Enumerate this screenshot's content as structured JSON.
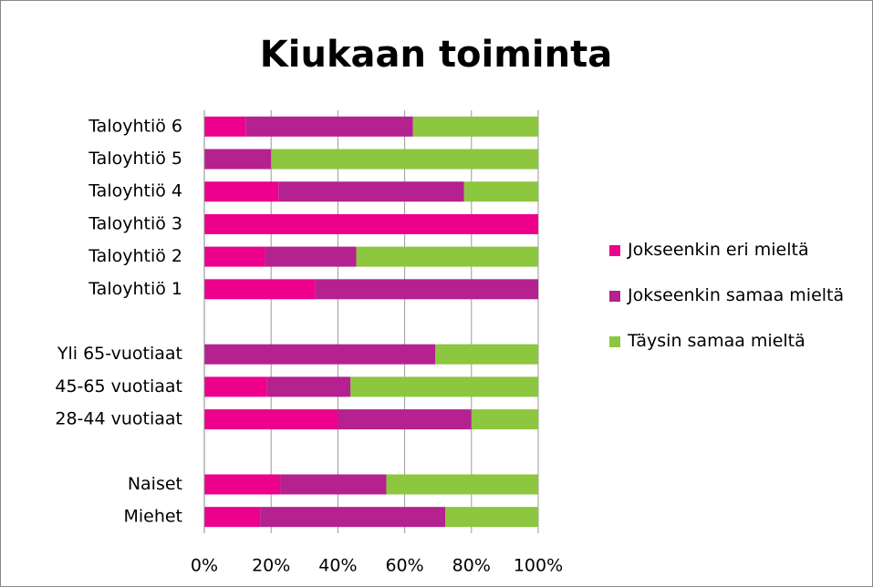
{
  "chart_data": {
    "type": "stacked_bar_horizontal",
    "title": "Kiukaan toiminta",
    "categories": [
      "Taloyhtiö 6",
      "Taloyhtiö 5",
      "Taloyhtiö 4",
      "Taloyhtiö 3",
      "Taloyhtiö 2",
      "Taloyhtiö 1",
      null,
      "Yli 65-vuotiaat",
      "45-65 vuotiaat",
      "28-44 vuotiaat",
      null,
      "Naiset",
      "Miehet"
    ],
    "series": [
      {
        "name": "Jokseenkin eri mieltä",
        "color": "#ec008c",
        "values": [
          12.5,
          0,
          22.2,
          100,
          18.2,
          33.3,
          null,
          0,
          18.8,
          40,
          null,
          22.7,
          16.7
        ]
      },
      {
        "name": "Jokseenkin samaa mieltä",
        "color": "#b5218f",
        "values": [
          50,
          20,
          55.6,
          0,
          27.3,
          66.7,
          null,
          69.2,
          25,
          40,
          null,
          31.8,
          55.5
        ]
      },
      {
        "name": "Täysin samaa mieltä",
        "color": "#8dc63f",
        "values": [
          37.5,
          80,
          22.2,
          0,
          54.5,
          0,
          null,
          30.8,
          56.2,
          20,
          null,
          45.5,
          27.8
        ]
      }
    ],
    "xlim": [
      0,
      100
    ],
    "xticks": [
      {
        "value": 0,
        "label": "0%"
      },
      {
        "value": 20,
        "label": "20%"
      },
      {
        "value": 40,
        "label": "40%"
      },
      {
        "value": 60,
        "label": "60%"
      },
      {
        "value": 80,
        "label": "80%"
      },
      {
        "value": 100,
        "label": "100%"
      }
    ],
    "grid": true,
    "legend": "right"
  }
}
